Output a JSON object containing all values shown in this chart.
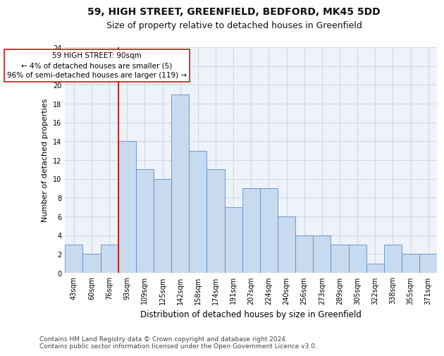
{
  "title1": "59, HIGH STREET, GREENFIELD, BEDFORD, MK45 5DD",
  "title2": "Size of property relative to detached houses in Greenfield",
  "xlabel": "Distribution of detached houses by size in Greenfield",
  "ylabel": "Number of detached properties",
  "categories": [
    "43sqm",
    "60sqm",
    "76sqm",
    "93sqm",
    "109sqm",
    "125sqm",
    "142sqm",
    "158sqm",
    "174sqm",
    "191sqm",
    "207sqm",
    "224sqm",
    "240sqm",
    "256sqm",
    "273sqm",
    "289sqm",
    "305sqm",
    "322sqm",
    "338sqm",
    "355sqm",
    "371sqm"
  ],
  "values": [
    3,
    2,
    3,
    14,
    11,
    10,
    19,
    13,
    11,
    7,
    9,
    9,
    6,
    4,
    4,
    3,
    3,
    1,
    3,
    2,
    2
  ],
  "bar_color": "#c8daef",
  "bar_edge_color": "#5b8dc8",
  "vline_x_idx": 3,
  "vline_color": "#cc0000",
  "annotation_text": "59 HIGH STREET: 90sqm\n← 4% of detached houses are smaller (5)\n96% of semi-detached houses are larger (119) →",
  "annotation_box_color": "#ffffff",
  "annotation_box_edge": "#cc0000",
  "ylim": [
    0,
    24
  ],
  "yticks": [
    0,
    2,
    4,
    6,
    8,
    10,
    12,
    14,
    16,
    18,
    20,
    22,
    24
  ],
  "grid_color": "#cdd5e5",
  "bg_color": "#eef2f9",
  "footer1": "Contains HM Land Registry data © Crown copyright and database right 2024.",
  "footer2": "Contains public sector information licensed under the Open Government Licence v3.0.",
  "title1_fontsize": 10,
  "title2_fontsize": 9,
  "xlabel_fontsize": 8.5,
  "ylabel_fontsize": 8,
  "tick_fontsize": 7,
  "footer_fontsize": 6.5,
  "ann_fontsize": 7.5
}
